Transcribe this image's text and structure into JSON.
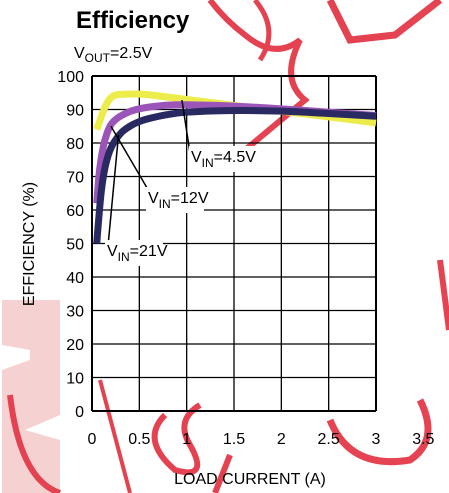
{
  "chart_data": {
    "type": "line",
    "title": "Efficiency",
    "condition": {
      "main": "V",
      "sub": "OUT",
      "rest": "=2.5V"
    },
    "xlabel": "LOAD CURRENT (A)",
    "ylabel": "EFFICIENCY (%)",
    "xlim": [
      0,
      3.5
    ],
    "ylim": [
      0,
      100
    ],
    "xticks": [
      "0",
      "0.5",
      "1",
      "1.5",
      "2",
      "2.5",
      "3",
      "3.5"
    ],
    "xtick_values": [
      0,
      0.5,
      1,
      1.5,
      2,
      2.5,
      3,
      3.5
    ],
    "yticks": [
      "0",
      "10",
      "20",
      "30",
      "40",
      "50",
      "60",
      "70",
      "80",
      "90",
      "100"
    ],
    "ytick_values": [
      0,
      10,
      20,
      30,
      40,
      50,
      60,
      70,
      80,
      90,
      100
    ],
    "grid": true,
    "series": [
      {
        "name": "VIN=4.5V",
        "label": {
          "main": "V",
          "sub": "IN",
          "rest": "=4.5V"
        },
        "color": "#ecec4a",
        "x": [
          0.05,
          0.1,
          0.15,
          0.2,
          0.25,
          0.3,
          0.4,
          0.5,
          0.6,
          0.8,
          1.0,
          1.2,
          1.5,
          2.0,
          2.5,
          3.0
        ],
        "y": [
          84,
          88,
          91.5,
          93.5,
          94.3,
          94.5,
          94.6,
          94.6,
          94.4,
          93.7,
          93,
          92.3,
          91.2,
          89.5,
          87.8,
          86
        ]
      },
      {
        "name": "VIN=12V",
        "label": {
          "main": "V",
          "sub": "IN",
          "rest": "=12V"
        },
        "color": "#9b55b8",
        "x": [
          0.05,
          0.08,
          0.12,
          0.16,
          0.2,
          0.25,
          0.3,
          0.4,
          0.5,
          0.6,
          0.8,
          1.0,
          1.5,
          2.0,
          2.5,
          3.0
        ],
        "y": [
          62,
          72,
          79,
          83,
          85.5,
          87,
          88,
          89.4,
          90.2,
          90.7,
          91.3,
          91.4,
          91,
          90.2,
          89.2,
          88.2
        ]
      },
      {
        "name": "VIN=21V",
        "label": {
          "main": "V",
          "sub": "IN",
          "rest": "=21V"
        },
        "color": "#2a2a63",
        "x": [
          0.05,
          0.07,
          0.1,
          0.14,
          0.2,
          0.3,
          0.4,
          0.5,
          0.6,
          0.8,
          1.0,
          1.3,
          1.6,
          2.0,
          2.5,
          3.0
        ],
        "y": [
          50,
          57,
          66,
          73,
          78.5,
          82.8,
          85,
          86.4,
          87.3,
          88.5,
          89.2,
          89.6,
          89.7,
          89.5,
          88.8,
          88
        ]
      }
    ]
  }
}
